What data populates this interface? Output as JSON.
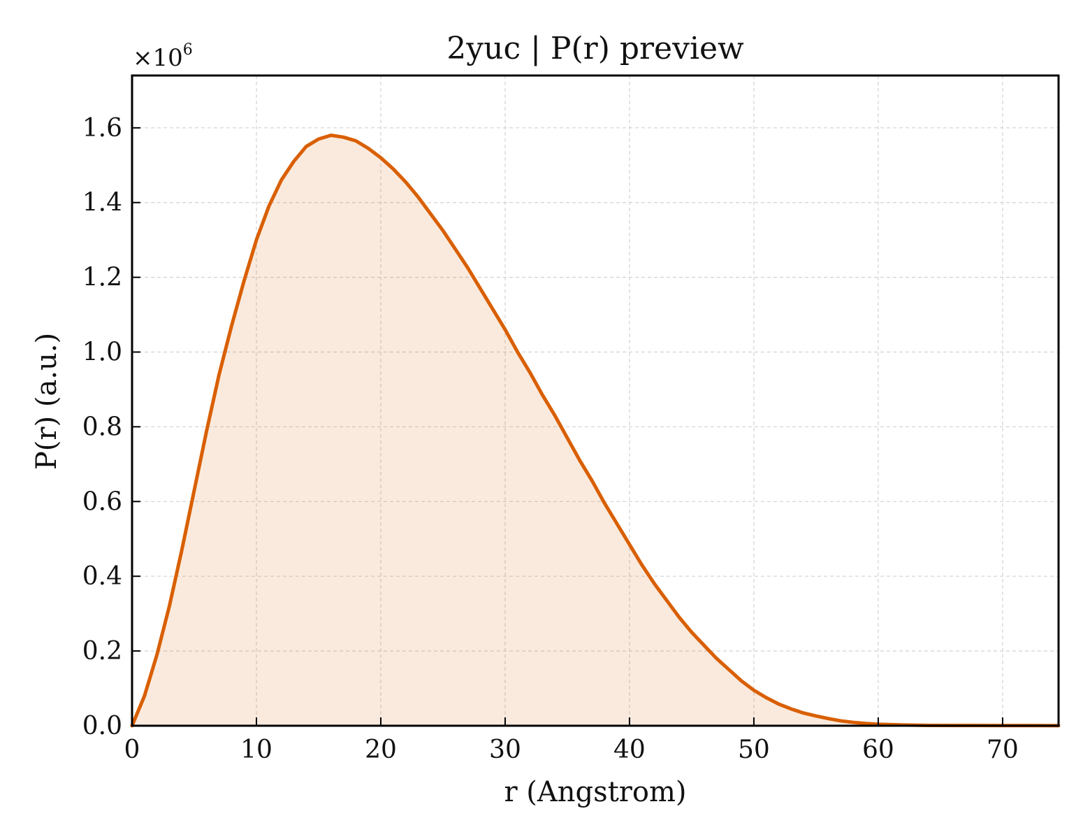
{
  "chart_data": {
    "type": "area",
    "title": "2yuc | P(r) preview",
    "xlabel": "r (Angstrom)",
    "ylabel": "P(r) (a.u.)",
    "y_multiplier": {
      "base": "×10",
      "exponent": "6"
    },
    "xlim": [
      0,
      74.5
    ],
    "ylim": [
      0,
      1.74
    ],
    "x_ticks": [
      0,
      10,
      20,
      30,
      40,
      50,
      60,
      70
    ],
    "x_tick_labels": [
      "0",
      "10",
      "20",
      "30",
      "40",
      "50",
      "60",
      "70"
    ],
    "y_ticks": [
      0,
      0.2,
      0.4,
      0.6,
      0.8,
      1.0,
      1.2,
      1.4,
      1.6
    ],
    "y_tick_labels": [
      "0.0",
      "0.2",
      "0.4",
      "0.6",
      "0.8",
      "1.0",
      "1.2",
      "1.4",
      "1.6"
    ],
    "grid": true,
    "series": [
      {
        "color": "#d95f02",
        "fill_color": "#d95f02",
        "fill_opacity": 0.13,
        "x": [
          0,
          1,
          2,
          3,
          4,
          5,
          6,
          7,
          8,
          9,
          10,
          11,
          12,
          13,
          14,
          15,
          16,
          17,
          18,
          19,
          20,
          21,
          22,
          23,
          24,
          25,
          26,
          27,
          28,
          29,
          30,
          31,
          32,
          33,
          34,
          35,
          36,
          37,
          38,
          39,
          40,
          41,
          42,
          43,
          44,
          45,
          46,
          47,
          48,
          49,
          50,
          51,
          52,
          53,
          54,
          55,
          56,
          57,
          58,
          59,
          60,
          62,
          64,
          66,
          68,
          70,
          72,
          74.5
        ],
        "y": [
          0.0,
          0.08,
          0.19,
          0.32,
          0.47,
          0.63,
          0.79,
          0.94,
          1.07,
          1.19,
          1.3,
          1.39,
          1.46,
          1.51,
          1.55,
          1.57,
          1.58,
          1.575,
          1.565,
          1.545,
          1.52,
          1.49,
          1.455,
          1.415,
          1.37,
          1.325,
          1.275,
          1.225,
          1.17,
          1.115,
          1.06,
          1.0,
          0.945,
          0.885,
          0.83,
          0.77,
          0.71,
          0.655,
          0.595,
          0.54,
          0.485,
          0.43,
          0.38,
          0.335,
          0.29,
          0.25,
          0.215,
          0.18,
          0.15,
          0.12,
          0.095,
          0.075,
          0.058,
          0.045,
          0.034,
          0.026,
          0.019,
          0.013,
          0.009,
          0.006,
          0.004,
          0.002,
          0.001,
          0.0008,
          0.0006,
          0.0005,
          0.0004,
          0.0003
        ]
      }
    ]
  }
}
